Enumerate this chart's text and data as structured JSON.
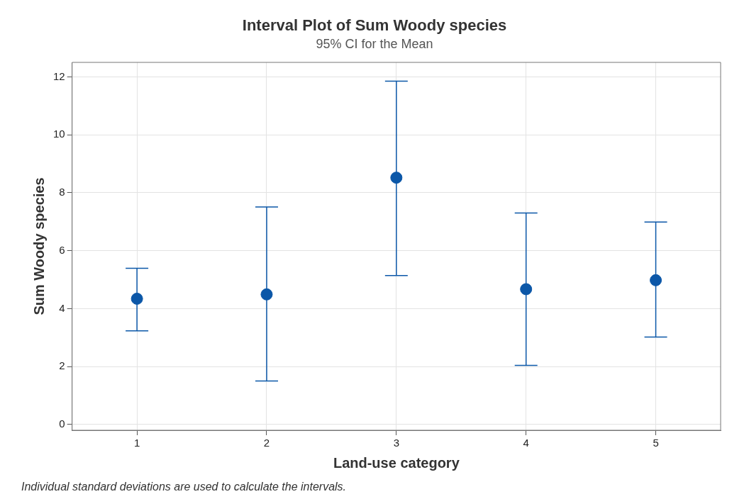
{
  "chart_data": {
    "type": "scatter",
    "title": "Interval Plot of Sum Woody species",
    "subtitle": "95% CI for the Mean",
    "xlabel": "Land-use category",
    "ylabel": "Sum Woody species",
    "categories": [
      "1",
      "2",
      "3",
      "4",
      "5"
    ],
    "series": [
      {
        "color": "#0b57a8",
        "values": [
          4.34,
          4.49,
          8.52,
          4.67,
          4.98
        ],
        "errors": [
          [
            3.23,
            5.39
          ],
          [
            1.5,
            7.51
          ],
          [
            5.14,
            11.85
          ],
          [
            2.04,
            7.3
          ],
          [
            3.02,
            6.99
          ]
        ]
      }
    ],
    "ylim": [
      -0.2,
      12.5
    ],
    "yticks": [
      0,
      2,
      4,
      6,
      8,
      10,
      12
    ],
    "grid": true,
    "legend": false,
    "marker": "circle",
    "annotations": [
      "Individual standard deviations are used to calculate the intervals."
    ]
  }
}
